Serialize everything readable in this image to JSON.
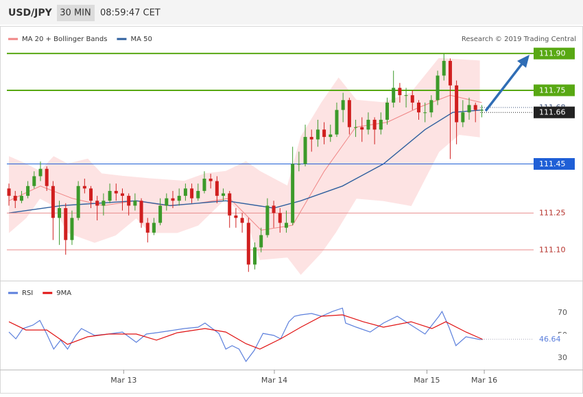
{
  "header": {
    "symbol": "USD/JPY",
    "interval": "30 MIN",
    "time": "08:59:47 CET"
  },
  "chart_data": [
    {
      "type": "candlestick",
      "credit": "Research © 2019 Trading Central",
      "up_color": "#3c9a2a",
      "down_color": "#d01f1f",
      "xlim": [
        -0.33,
        82.9
      ],
      "ylim": [
        110.98,
        111.92
      ],
      "open": [
        111.35,
        111.32,
        111.3,
        111.32,
        111.36,
        111.4,
        111.43,
        111.36,
        111.23,
        111.27,
        111.14,
        111.23,
        111.36,
        111.35,
        111.3,
        111.28,
        111.3,
        111.34,
        111.33,
        111.32,
        111.28,
        111.3,
        111.21,
        111.17,
        111.21,
        111.28,
        111.31,
        111.3,
        111.32,
        111.35,
        111.31,
        111.34,
        111.39,
        111.38,
        111.32,
        111.33,
        111.24,
        111.23,
        111.21,
        111.04,
        111.11,
        111.16,
        111.28,
        111.25,
        111.19,
        111.21,
        111.45,
        111.45,
        111.56,
        111.55,
        111.59,
        111.56,
        111.57,
        111.67,
        111.71,
        111.6,
        111.6,
        111.59,
        111.63,
        111.59,
        111.63,
        111.7,
        111.76,
        111.73,
        111.73,
        111.7,
        111.66,
        111.66,
        111.71,
        111.81,
        111.87,
        111.77,
        111.62,
        111.66,
        111.69,
        111.67
      ],
      "high": [
        111.37,
        111.34,
        111.34,
        111.38,
        111.42,
        111.46,
        111.44,
        111.38,
        111.3,
        111.29,
        111.26,
        111.38,
        111.39,
        111.36,
        111.32,
        111.33,
        111.37,
        111.37,
        111.35,
        111.33,
        111.33,
        111.31,
        111.23,
        111.23,
        111.31,
        111.33,
        111.34,
        111.35,
        111.37,
        111.37,
        111.37,
        111.42,
        111.41,
        111.4,
        111.35,
        111.34,
        111.27,
        111.25,
        111.23,
        111.13,
        111.19,
        111.31,
        111.3,
        111.27,
        111.26,
        111.52,
        111.5,
        111.61,
        111.59,
        111.63,
        111.62,
        111.61,
        111.7,
        111.74,
        111.72,
        111.63,
        111.64,
        111.66,
        111.64,
        111.66,
        111.72,
        111.83,
        111.78,
        111.76,
        111.75,
        111.71,
        111.7,
        111.73,
        111.83,
        111.9,
        111.88,
        111.79,
        111.71,
        111.72,
        111.7,
        111.69
      ],
      "low": [
        111.28,
        111.27,
        111.29,
        111.31,
        111.35,
        111.38,
        111.34,
        111.14,
        111.12,
        111.08,
        111.12,
        111.22,
        111.33,
        111.27,
        111.22,
        111.24,
        111.29,
        111.3,
        111.26,
        111.24,
        111.26,
        111.19,
        111.13,
        111.16,
        111.2,
        111.26,
        111.27,
        111.28,
        111.3,
        111.29,
        111.3,
        111.33,
        111.35,
        111.29,
        111.3,
        111.19,
        111.19,
        111.17,
        111.01,
        111.02,
        111.09,
        111.15,
        111.19,
        111.17,
        111.17,
        111.2,
        111.42,
        111.44,
        111.5,
        111.52,
        111.53,
        111.54,
        111.56,
        111.62,
        111.57,
        111.56,
        111.54,
        111.57,
        111.53,
        111.57,
        111.61,
        111.68,
        111.7,
        111.68,
        111.67,
        111.63,
        111.62,
        111.64,
        111.69,
        111.79,
        111.47,
        111.53,
        111.6,
        111.63,
        111.62,
        111.64
      ],
      "close": [
        111.32,
        111.3,
        111.32,
        111.36,
        111.4,
        111.43,
        111.36,
        111.23,
        111.27,
        111.14,
        111.23,
        111.36,
        111.35,
        111.3,
        111.28,
        111.3,
        111.34,
        111.33,
        111.32,
        111.28,
        111.3,
        111.21,
        111.17,
        111.21,
        111.28,
        111.31,
        111.3,
        111.32,
        111.35,
        111.31,
        111.34,
        111.39,
        111.38,
        111.32,
        111.33,
        111.24,
        111.23,
        111.21,
        111.04,
        111.11,
        111.16,
        111.28,
        111.25,
        111.21,
        111.21,
        111.45,
        111.45,
        111.56,
        111.55,
        111.59,
        111.56,
        111.57,
        111.67,
        111.71,
        111.6,
        111.6,
        111.59,
        111.63,
        111.59,
        111.63,
        111.7,
        111.76,
        111.73,
        111.73,
        111.7,
        111.66,
        111.66,
        111.71,
        111.81,
        111.87,
        111.77,
        111.62,
        111.66,
        111.69,
        111.67,
        111.67
      ],
      "series": [
        {
          "name": "MA 20 + Bollinger Bands",
          "color": "#f08585",
          "band_color": "#fde3e3",
          "x": [
            0,
            5,
            10,
            15,
            20,
            25,
            30,
            35,
            40,
            45,
            50,
            55,
            60,
            65,
            70,
            75
          ],
          "values": [
            111.3,
            111.36,
            111.31,
            111.28,
            111.3,
            111.28,
            111.29,
            111.31,
            111.18,
            111.2,
            111.42,
            111.6,
            111.62,
            111.68,
            111.73,
            111.7
          ],
          "upper": {
            "x": [
              0,
              2.7,
              4.9,
              7.1,
              9.3,
              12.5,
              14.7,
              18,
              22.4,
              27.8,
              31.1,
              34.4,
              37.6,
              39.8,
              44.2,
              46.3,
              49.6,
              52.3,
              55.1,
              59.4,
              63.8,
              68.2,
              74.7
            ],
            "values": [
              111.48,
              111.45,
              111.42,
              111.48,
              111.45,
              111.47,
              111.41,
              111.4,
              111.39,
              111.38,
              111.41,
              111.42,
              111.46,
              111.42,
              111.36,
              111.56,
              111.7,
              111.8,
              111.71,
              111.7,
              111.74,
              111.88,
              111.87
            ]
          },
          "lower": {
            "x": [
              0,
              2.7,
              4.9,
              7.1,
              9.3,
              13.6,
              16.9,
              20.2,
              22.4,
              26.7,
              30,
              34.4,
              37.6,
              39.8,
              44.2,
              46.3,
              49.6,
              51.8,
              55.1,
              59.4,
              63.8,
              68.2,
              71.4,
              74.7
            ],
            "values": [
              111.17,
              111.23,
              111.31,
              111.28,
              111.17,
              111.13,
              111.16,
              111.23,
              111.17,
              111.17,
              111.2,
              111.31,
              111.23,
              111.06,
              111.07,
              111.0,
              111.09,
              111.17,
              111.31,
              111.3,
              111.28,
              111.5,
              111.57,
              111.56
            ]
          }
        },
        {
          "name": "MA 50",
          "color": "#2e5f9e",
          "x": [
            0,
            8.3,
            20.2,
            25.6,
            34.4,
            42,
            46.3,
            52.9,
            59.4,
            66,
            70.4,
            75.2
          ],
          "values": [
            111.25,
            111.28,
            111.3,
            111.28,
            111.3,
            111.27,
            111.3,
            111.36,
            111.45,
            111.59,
            111.66,
            111.67
          ]
        }
      ],
      "levels": [
        {
          "value": 111.9,
          "label": "111.90",
          "color": "#58a813",
          "line": "solid",
          "boxed": true
        },
        {
          "value": 111.75,
          "label": "111.75",
          "color": "#58a813",
          "line": "solid",
          "boxed": true
        },
        {
          "value": 111.45,
          "label": "111.45",
          "color": "#1f5fd6",
          "line": "solid",
          "boxed": true
        },
        {
          "value": 111.25,
          "label": "111.25",
          "color": "#e88a8a",
          "line": "solid",
          "boxed": false
        },
        {
          "value": 111.1,
          "label": "111.10",
          "color": "#e88a8a",
          "line": "solid",
          "boxed": false
        },
        {
          "value": 111.68,
          "label": "111.68",
          "color": "#3a4f78",
          "line": "dotted",
          "boxed": false
        },
        {
          "value": 111.66,
          "label": "111.66",
          "color": "#222222",
          "line": "dotted",
          "boxed": true
        }
      ]
    },
    {
      "type": "line",
      "xlim": [
        -0.33,
        82.9
      ],
      "ylim": [
        19.7,
        87.6
      ],
      "yticks": [
        30,
        50,
        70
      ],
      "xticks": [
        {
          "value": 18.2,
          "label": "Mar 13"
        },
        {
          "value": 42.1,
          "label": "Mar 14"
        },
        {
          "value": 66.3,
          "label": "Mar 15"
        },
        {
          "value": 75.4,
          "label": "Mar 16"
        }
      ],
      "last": {
        "value": 46.64,
        "label": "46.64"
      },
      "series": [
        {
          "name": "RSI",
          "color": "#5b7fdc",
          "x": [
            0,
            1.1,
            2.2,
            3.8,
            4.9,
            6,
            7.1,
            8.2,
            9.3,
            10.6,
            11.5,
            13.6,
            15.8,
            18,
            20.2,
            21.8,
            23.4,
            25.6,
            27.8,
            30,
            31.1,
            33.3,
            34.4,
            35.4,
            36.5,
            37.6,
            38.9,
            40.3,
            42,
            43.1,
            44.4,
            45.3,
            46.3,
            48,
            49.6,
            51.3,
            52.9,
            53.4,
            55.1,
            57.3,
            59.4,
            61.6,
            63.8,
            66,
            68.2,
            68.7,
            69.8,
            70.9,
            72.5,
            74.7,
            75.2
          ],
          "values": [
            53.0,
            47.0,
            56.1,
            59.1,
            63.3,
            51.2,
            37.9,
            45.8,
            37.9,
            50.0,
            56.1,
            50.0,
            51.2,
            53.0,
            43.9,
            51.2,
            52.4,
            54.2,
            56.1,
            57.3,
            60.9,
            51.8,
            37.9,
            40.9,
            37.9,
            27.0,
            36.7,
            51.8,
            50.0,
            47.0,
            62.1,
            67.0,
            68.2,
            69.4,
            67.0,
            71.2,
            74.2,
            60.9,
            57.3,
            53.0,
            60.9,
            67.0,
            59.1,
            51.2,
            67.0,
            71.2,
            57.3,
            40.9,
            48.8,
            46.4,
            46.64
          ]
        },
        {
          "name": "9MA",
          "color": "#e01010",
          "x": [
            0,
            2.7,
            6,
            9.3,
            12.5,
            15.8,
            20.2,
            23.4,
            26.7,
            31.1,
            34.4,
            37.6,
            39.8,
            43.1,
            46.3,
            49.6,
            52.9,
            56.2,
            59.4,
            63.8,
            67.1,
            69.3,
            72.5,
            75.2
          ],
          "values": [
            62.1,
            54.8,
            54.8,
            42.1,
            48.8,
            51.2,
            51.2,
            45.8,
            52.4,
            56.1,
            53.0,
            42.7,
            37.9,
            47.0,
            57.3,
            67.0,
            68.2,
            62.1,
            57.3,
            62.1,
            56.1,
            62.1,
            53.0,
            46.4
          ]
        }
      ]
    }
  ]
}
